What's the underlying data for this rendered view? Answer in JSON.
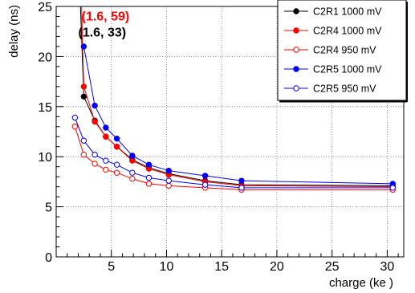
{
  "chart_data": {
    "type": "line",
    "title": "",
    "xlabel": "charge (ke )",
    "ylabel": "delay (ns)",
    "xlim": [
      0,
      31.5
    ],
    "ylim": [
      0,
      25
    ],
    "x_ticks": [
      5,
      10,
      15,
      20,
      25,
      30
    ],
    "y_ticks": [
      0,
      5,
      10,
      15,
      20,
      25
    ],
    "grid": true,
    "legend_position": "top-right",
    "annotations": [
      {
        "text": "(1.6, 59)",
        "x": 2.3,
        "y": 23.6,
        "color": "#ff0000"
      },
      {
        "text": "(1.6, 33)",
        "x": 2.0,
        "y": 22.0,
        "color": "#000000"
      }
    ],
    "series": [
      {
        "name": "C2R1 1000 mV",
        "color": "#000000",
        "marker": "filled",
        "x": [
          2.5,
          3.5,
          4.5,
          5.5,
          6.9,
          8.4,
          10.2,
          13.5,
          16.8,
          30.5
        ],
        "y": [
          16.0,
          13.6,
          12.0,
          11.0,
          9.7,
          8.9,
          8.3,
          7.6,
          7.2,
          7.1
        ],
        "extends_above": {
          "from_x": 2.5,
          "from_y": 16.0,
          "to_x": 2.2,
          "to_y": 25
        }
      },
      {
        "name": "C2R4 1000 mV",
        "color": "#ff0000",
        "marker": "filled",
        "x": [
          2.5,
          3.5,
          4.5,
          5.5,
          6.9,
          8.4,
          10.2,
          13.5,
          16.8,
          30.5
        ],
        "y": [
          17.0,
          13.5,
          12.0,
          11.0,
          9.6,
          8.8,
          8.2,
          7.5,
          7.1,
          7.0
        ],
        "extends_above": {
          "from_x": 2.5,
          "from_y": 17.0,
          "to_x": 2.3,
          "to_y": 25
        }
      },
      {
        "name": "C2R4 950 mV",
        "color": "#ff0000",
        "marker": "open",
        "x": [
          1.7,
          2.5,
          3.5,
          4.5,
          5.5,
          6.9,
          8.4,
          10.2,
          13.5,
          16.8,
          30.5
        ],
        "y": [
          13.0,
          10.2,
          9.3,
          8.7,
          8.4,
          7.8,
          7.3,
          7.1,
          6.9,
          6.7,
          6.7
        ]
      },
      {
        "name": "C2R5 1000 mV",
        "color": "#0000ff",
        "marker": "filled",
        "x": [
          2.5,
          3.5,
          4.5,
          5.5,
          6.9,
          8.4,
          10.2,
          13.5,
          16.8,
          30.5
        ],
        "y": [
          21.0,
          15.1,
          12.9,
          11.8,
          10.1,
          9.2,
          8.6,
          8.1,
          7.6,
          7.3
        ]
      },
      {
        "name": "C2R5 950 mV",
        "color": "#0000ff",
        "marker": "open",
        "x": [
          1.7,
          2.5,
          3.5,
          4.5,
          5.5,
          6.9,
          8.4,
          10.2,
          13.5,
          16.8,
          30.5
        ],
        "y": [
          13.9,
          11.6,
          10.2,
          9.6,
          9.2,
          8.4,
          7.9,
          7.6,
          7.2,
          6.9,
          6.9
        ]
      }
    ]
  }
}
